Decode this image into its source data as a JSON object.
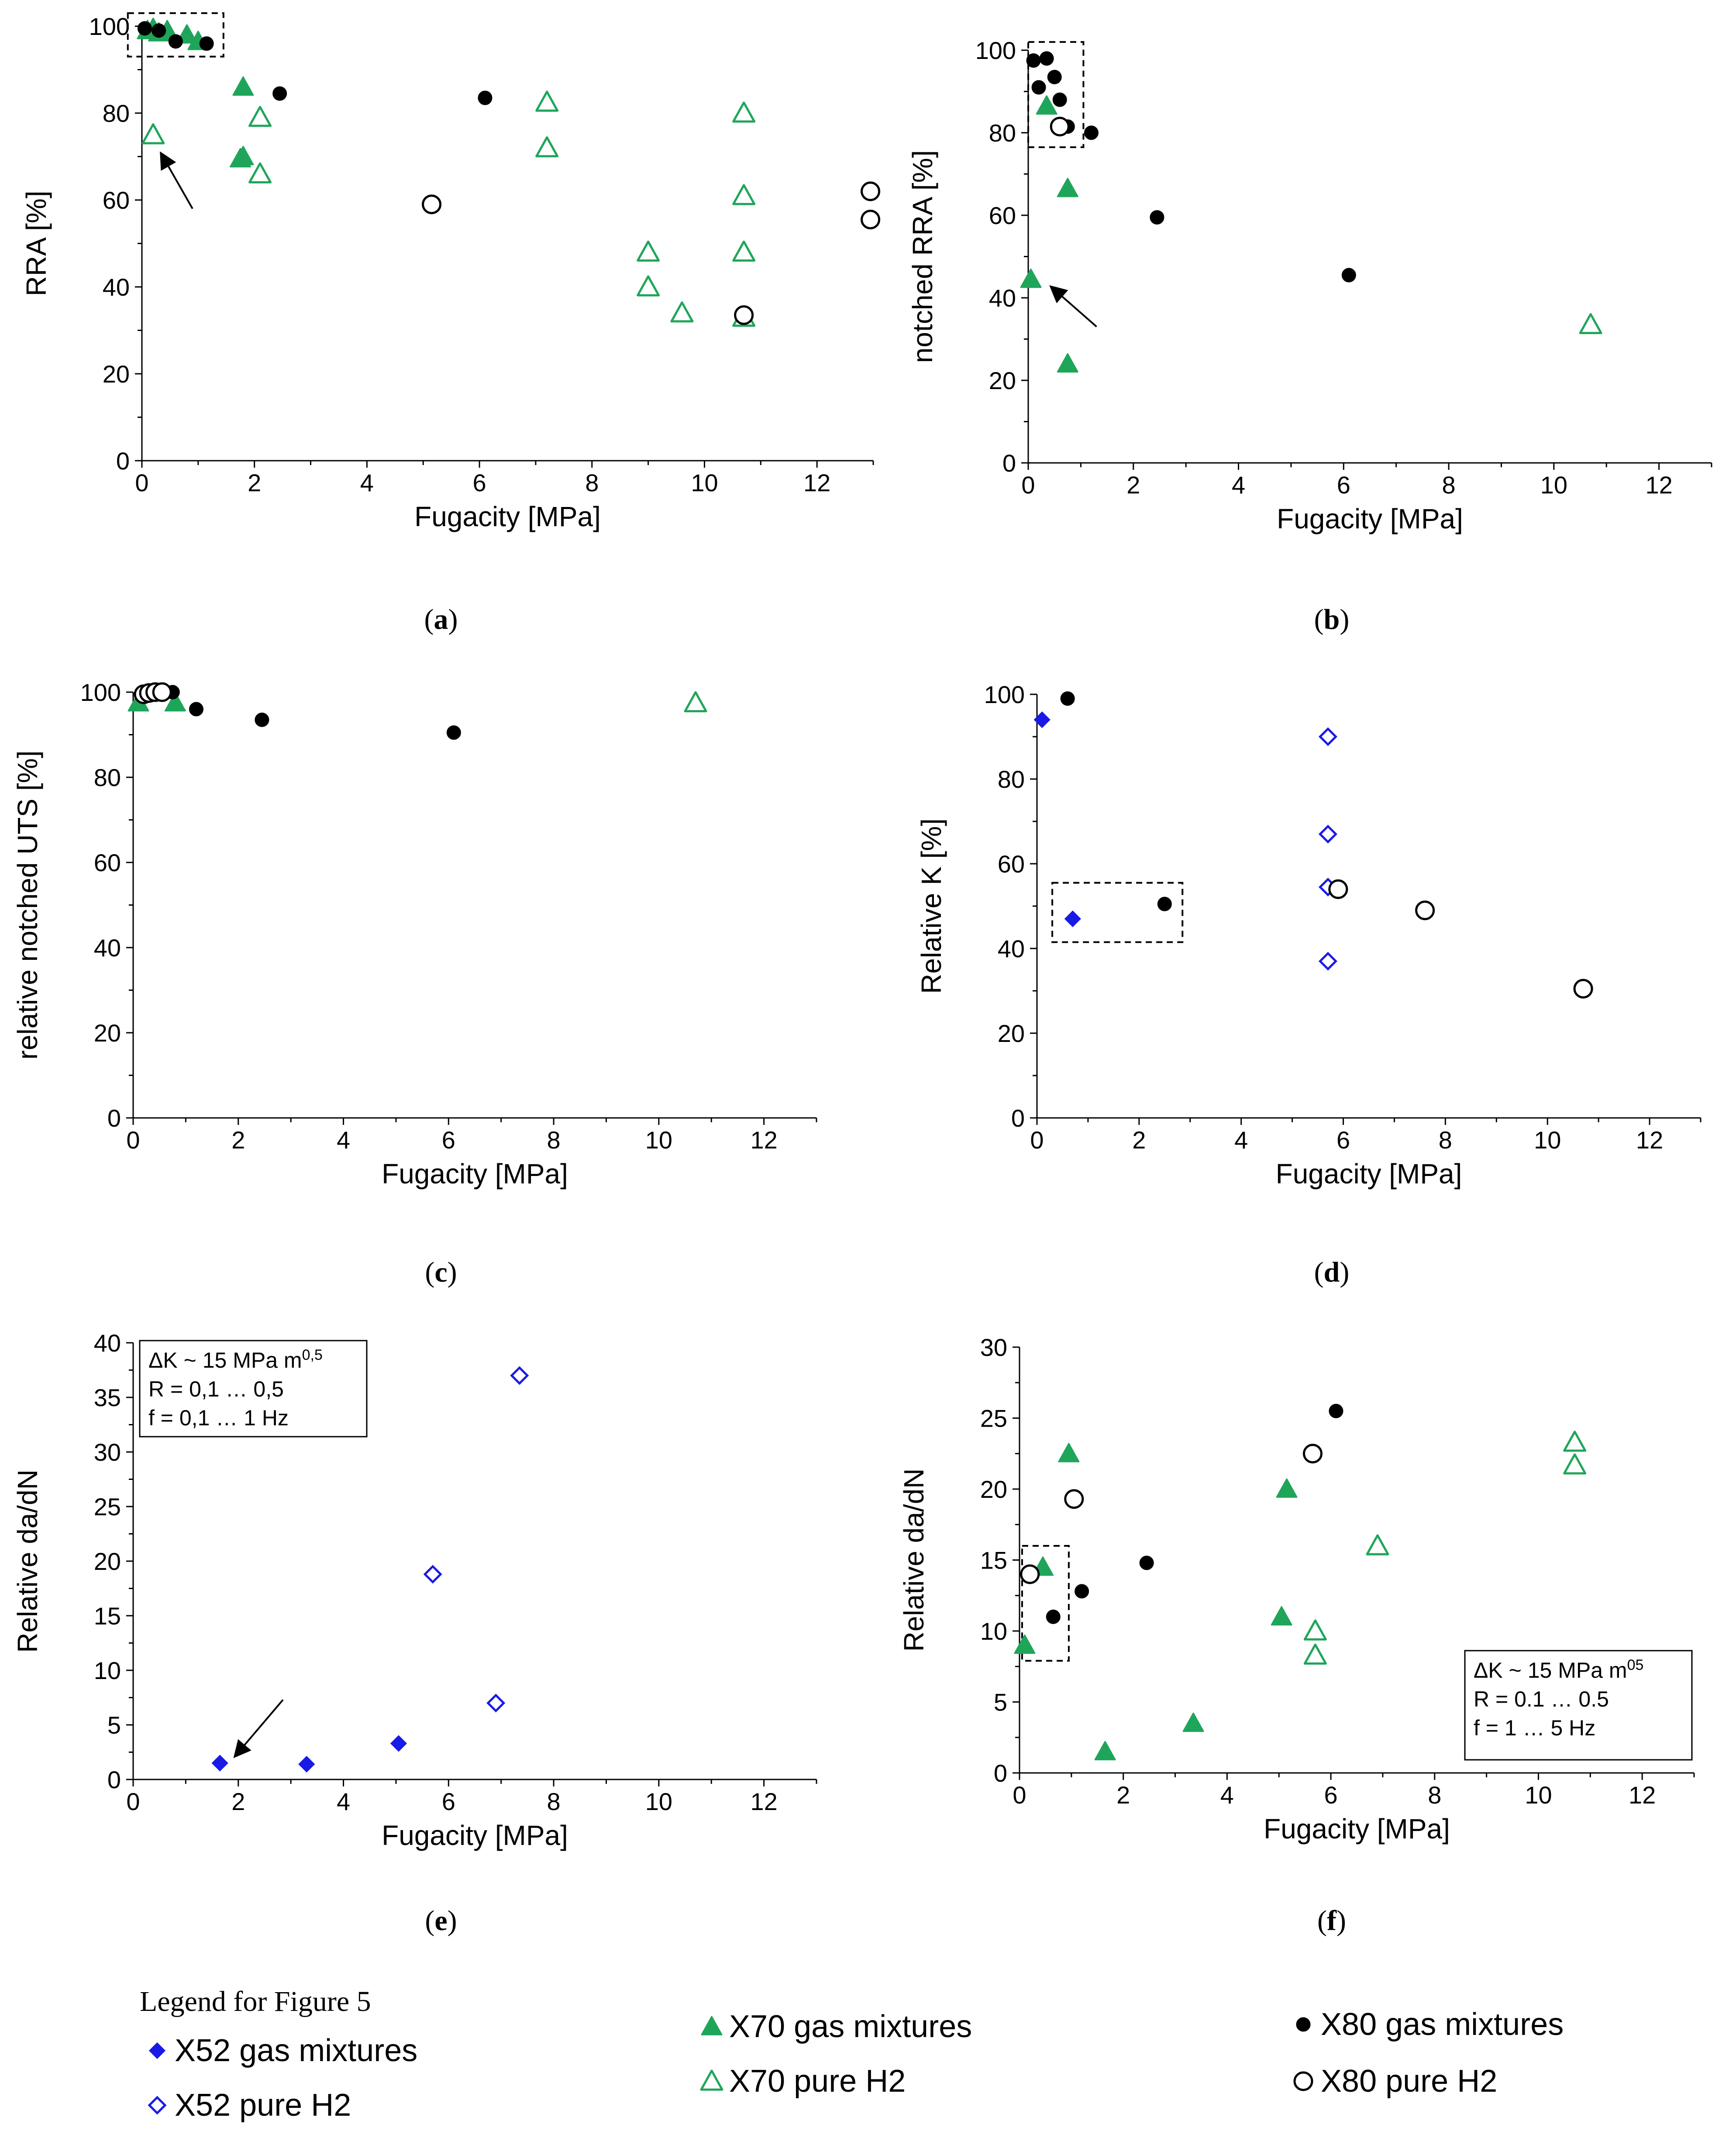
{
  "chart_data": [
    {
      "id": "a",
      "type": "scatter",
      "caption_letter": "a",
      "xlabel": "Fugacity [MPa]",
      "ylabel": "RRA [%]",
      "xlim": [
        0,
        13
      ],
      "ylim": [
        0,
        100
      ],
      "xticks": [
        "0",
        "2",
        "4",
        "6",
        "8",
        "10",
        "12"
      ],
      "yticks": [
        "0",
        "20",
        "40",
        "60",
        "80",
        "100"
      ],
      "series": [
        {
          "name": "X70 gas mixtures",
          "points": [
            [
              0.1,
              99
            ],
            [
              0.2,
              99.5
            ],
            [
              0.3,
              98.5
            ],
            [
              0.45,
              99
            ],
            [
              0.8,
              98
            ],
            [
              1.0,
              96.5
            ],
            [
              1.8,
              86
            ],
            [
              1.8,
              70
            ],
            [
              1.75,
              69.5
            ]
          ]
        },
        {
          "name": "X70 pure H2",
          "points": [
            [
              0.2,
              75
            ],
            [
              2.1,
              79
            ],
            [
              2.1,
              66
            ],
            [
              7.2,
              82.5
            ],
            [
              7.2,
              72
            ],
            [
              9.0,
              48
            ],
            [
              9.0,
              40
            ],
            [
              9.6,
              34
            ],
            [
              10.7,
              80
            ],
            [
              10.7,
              61
            ],
            [
              10.7,
              48
            ],
            [
              10.7,
              33
            ]
          ]
        },
        {
          "name": "X80 gas mixtures",
          "points": [
            [
              0.05,
              99.5
            ],
            [
              0.3,
              99
            ],
            [
              0.6,
              96.5
            ],
            [
              1.15,
              96
            ],
            [
              2.45,
              84.5
            ],
            [
              6.1,
              83.5
            ]
          ]
        },
        {
          "name": "X80 pure H2",
          "points": [
            [
              5.15,
              59
            ],
            [
              10.7,
              33.5
            ],
            [
              12.95,
              62
            ],
            [
              12.95,
              55.5
            ]
          ]
        }
      ],
      "box": [
        [
          -0.25,
          93
        ],
        [
          1.45,
          103
        ]
      ],
      "arrow": [
        [
          0.9,
          58
        ],
        [
          0.35,
          70.5
        ]
      ]
    },
    {
      "id": "b",
      "type": "scatter",
      "caption_letter": "b",
      "xlabel": "Fugacity [MPa]",
      "ylabel": "notched RRA [%]",
      "xlim": [
        0,
        13
      ],
      "ylim": [
        0,
        100
      ],
      "xticks": [
        "0",
        "2",
        "4",
        "6",
        "8",
        "10",
        "12"
      ],
      "yticks": [
        "0",
        "20",
        "40",
        "60",
        "80",
        "100"
      ],
      "series": [
        {
          "name": "X70 gas mixtures",
          "points": [
            [
              0.35,
              86.5
            ],
            [
              0.75,
              66.5
            ],
            [
              0.05,
              44.5
            ],
            [
              0.75,
              24
            ]
          ]
        },
        {
          "name": "X70 pure H2",
          "points": [
            [
              10.7,
              33.5
            ]
          ]
        },
        {
          "name": "X80 gas mixtures",
          "points": [
            [
              0.1,
              97.5
            ],
            [
              0.35,
              98
            ],
            [
              0.2,
              91
            ],
            [
              0.5,
              93.5
            ],
            [
              0.6,
              88
            ],
            [
              0.75,
              81.5
            ],
            [
              1.2,
              80
            ],
            [
              2.45,
              59.5
            ],
            [
              6.1,
              45.5
            ]
          ]
        },
        {
          "name": "X80 pure H2",
          "points": [
            [
              0.6,
              81.5
            ]
          ]
        }
      ],
      "box": [
        [
          0,
          76.5
        ],
        [
          1.05,
          102
        ]
      ],
      "arrow": [
        [
          1.3,
          33
        ],
        [
          0.45,
          42.5
        ]
      ]
    },
    {
      "id": "c",
      "type": "scatter",
      "caption_letter": "c",
      "xlabel": "Fugacity [MPa]",
      "ylabel": "relative notched UTS [%]",
      "xlim": [
        0,
        13
      ],
      "ylim": [
        0,
        100
      ],
      "xticks": [
        "0",
        "2",
        "4",
        "6",
        "8",
        "10",
        "12"
      ],
      "yticks": [
        "0",
        "20",
        "40",
        "60",
        "80",
        "100"
      ],
      "series": [
        {
          "name": "X70 gas mixtures",
          "points": [
            [
              0.1,
              97.5
            ],
            [
              0.8,
              97.5
            ]
          ]
        },
        {
          "name": "X70 pure H2",
          "points": [
            [
              10.7,
              97.5
            ]
          ]
        },
        {
          "name": "X80 gas mixtures",
          "points": [
            [
              0.75,
              100
            ],
            [
              1.2,
              96
            ],
            [
              2.45,
              93.5
            ],
            [
              6.1,
              90.5
            ]
          ]
        },
        {
          "name": "X80 pure H2",
          "points": [
            [
              0.2,
              99.5
            ],
            [
              0.3,
              99.8
            ],
            [
              0.42,
              100
            ],
            [
              0.55,
              100
            ]
          ]
        }
      ]
    },
    {
      "id": "d",
      "type": "scatter",
      "caption_letter": "d",
      "xlabel": "Fugacity [MPa]",
      "ylabel": "Relative K [%]",
      "xlim": [
        0,
        13
      ],
      "ylim": [
        0,
        100
      ],
      "xticks": [
        "0",
        "2",
        "4",
        "6",
        "8",
        "10",
        "12"
      ],
      "yticks": [
        "0",
        "20",
        "40",
        "60",
        "80",
        "100"
      ],
      "series": [
        {
          "name": "X52 gas mixtures",
          "points": [
            [
              0.1,
              94
            ],
            [
              0.7,
              47
            ]
          ]
        },
        {
          "name": "X52 pure H2",
          "points": [
            [
              5.7,
              90
            ],
            [
              5.7,
              67
            ],
            [
              5.7,
              54.5
            ],
            [
              5.7,
              37
            ]
          ]
        },
        {
          "name": "X80 gas mixtures",
          "points": [
            [
              0.6,
              99
            ],
            [
              2.5,
              50.5
            ]
          ]
        },
        {
          "name": "X80 pure H2",
          "points": [
            [
              5.9,
              54
            ],
            [
              7.6,
              49
            ],
            [
              10.7,
              30.5
            ]
          ]
        }
      ],
      "box": [
        [
          0.3,
          41.5
        ],
        [
          2.85,
          55.5
        ]
      ]
    },
    {
      "id": "e",
      "type": "scatter",
      "caption_letter": "e",
      "xlabel": "Fugacity [MPa]",
      "ylabel": "Relative da/dN",
      "xlim": [
        0,
        13
      ],
      "ylim": [
        0,
        40
      ],
      "xticks": [
        "0",
        "2",
        "4",
        "6",
        "8",
        "10",
        "12"
      ],
      "yticks": [
        "0",
        "5",
        "10",
        "15",
        "20",
        "25",
        "30",
        "35",
        "40"
      ],
      "series": [
        {
          "name": "X52 gas mixtures",
          "points": [
            [
              1.65,
              1.5
            ],
            [
              3.3,
              1.4
            ],
            [
              5.05,
              3.3
            ]
          ]
        },
        {
          "name": "X52 pure H2",
          "points": [
            [
              5.7,
              18.8
            ],
            [
              6.9,
              7
            ],
            [
              7.35,
              37
            ]
          ]
        }
      ],
      "arrow": [
        [
          2.85,
          7.3
        ],
        [
          1.95,
          2.2
        ]
      ],
      "annotation": {
        "line1": "ΔK ~ 15 MPa m",
        "line1_sup": "0,5",
        "line2": "R = 0,1 … 0,5",
        "line3": "f = 0,1 … 1 Hz"
      }
    },
    {
      "id": "f",
      "type": "scatter",
      "caption_letter": "f",
      "xlabel": "Fugacity [MPa]",
      "ylabel": "Relative da/dN",
      "xlim": [
        0,
        13
      ],
      "ylim": [
        0,
        30
      ],
      "xticks": [
        "0",
        "2",
        "4",
        "6",
        "8",
        "10",
        "12"
      ],
      "yticks": [
        "0",
        "5",
        "10",
        "15",
        "20",
        "25",
        "30"
      ],
      "series": [
        {
          "name": "X70 gas mixtures",
          "points": [
            [
              0.1,
              9
            ],
            [
              0.45,
              14.5
            ],
            [
              0.95,
              22.5
            ],
            [
              1.65,
              1.5
            ],
            [
              3.35,
              3.5
            ],
            [
              5.05,
              11
            ],
            [
              5.15,
              20
            ]
          ]
        },
        {
          "name": "X70 pure H2",
          "points": [
            [
              5.7,
              10
            ],
            [
              5.7,
              8.3
            ],
            [
              6.9,
              16
            ],
            [
              10.7,
              23.3
            ],
            [
              10.7,
              21.7
            ]
          ]
        },
        {
          "name": "X80 gas mixtures",
          "points": [
            [
              0.65,
              11
            ],
            [
              1.2,
              12.8
            ],
            [
              2.45,
              14.8
            ],
            [
              6.1,
              25.5
            ]
          ]
        },
        {
          "name": "X80 pure H2",
          "points": [
            [
              0.2,
              14
            ],
            [
              1.05,
              19.3
            ],
            [
              5.65,
              22.5
            ]
          ]
        }
      ],
      "box": [
        [
          0.05,
          7.9
        ],
        [
          0.95,
          16
        ]
      ],
      "annotation": {
        "line1": "ΔK ~ 15 MPa m",
        "line1_sup": "05",
        "line2": "R = 0.1 … 0.5",
        "line3": "f = 1 … 5 Hz"
      }
    }
  ],
  "legend": {
    "title": "Legend for Figure 5",
    "entries": [
      {
        "key": "X52 gas mixtures",
        "label": "X52 gas mixtures"
      },
      {
        "key": "X52 pure H2",
        "label": "X52 pure H2"
      },
      {
        "key": "X70 gas mixtures",
        "label": "X70 gas mixtures"
      },
      {
        "key": "X70 pure H2",
        "label": "X70 pure H2"
      },
      {
        "key": "X80 gas mixtures",
        "label": "X80 gas mixtures"
      },
      {
        "key": "X80 pure H2",
        "label": "X80 pure H2"
      }
    ]
  },
  "styles": {
    "X52 gas mixtures": {
      "shape": "diamond",
      "filled": true,
      "color": "#1a1ae6"
    },
    "X52 pure H2": {
      "shape": "diamond",
      "filled": false,
      "color": "#1a1ae6"
    },
    "X70 gas mixtures": {
      "shape": "triangle",
      "filled": true,
      "color": "#1fa55a"
    },
    "X70 pure H2": {
      "shape": "triangle",
      "filled": false,
      "color": "#1fa55a"
    },
    "X80 gas mixtures": {
      "shape": "circle",
      "filled": true,
      "color": "#000000"
    },
    "X80 pure H2": {
      "shape": "circle",
      "filled": false,
      "color": "#000000"
    }
  }
}
